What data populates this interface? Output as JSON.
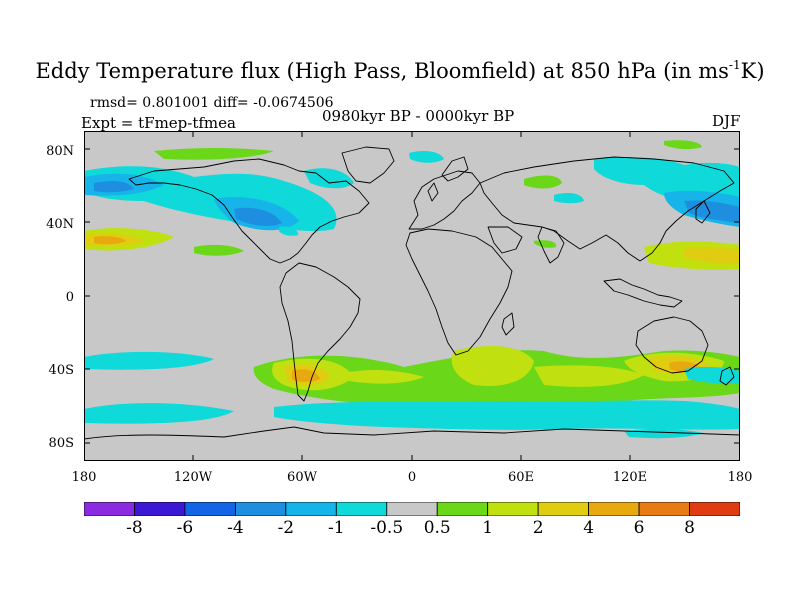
{
  "title": {
    "main": "Eddy Temperature flux (High Pass, Bloomfield) at 850 hPa (in ms",
    "sup": "-1",
    "tail": "K)"
  },
  "stats": "rmsd= 0.801001 diff= -0.0674506",
  "experiment": "Expt = tFmep-tfmea",
  "period": "0980kyr BP - 0000kyr BP",
  "season": "DJF",
  "lat_labels": [
    "80N",
    "40N",
    "0",
    "40S",
    "80S"
  ],
  "lon_labels": [
    "180",
    "120W",
    "60W",
    "0",
    "60E",
    "120E",
    "180"
  ],
  "colorbar": {
    "labels": [
      "-8",
      "-6",
      "-4",
      "-2",
      "-1",
      "-0.5",
      "0.5",
      "1",
      "2",
      "4",
      "6",
      "8"
    ],
    "colors": [
      "#8a2be2",
      "#3a18d4",
      "#1464e6",
      "#1e8fe0",
      "#16b4e8",
      "#0fd9d9",
      "#c8c8c8",
      "#6ad818",
      "#c0e010",
      "#e0cc10",
      "#e8a810",
      "#e87c14",
      "#e03c14"
    ]
  },
  "palette": {
    "ocean_neutral": "#c8c8c8",
    "coast": "#000000"
  }
}
